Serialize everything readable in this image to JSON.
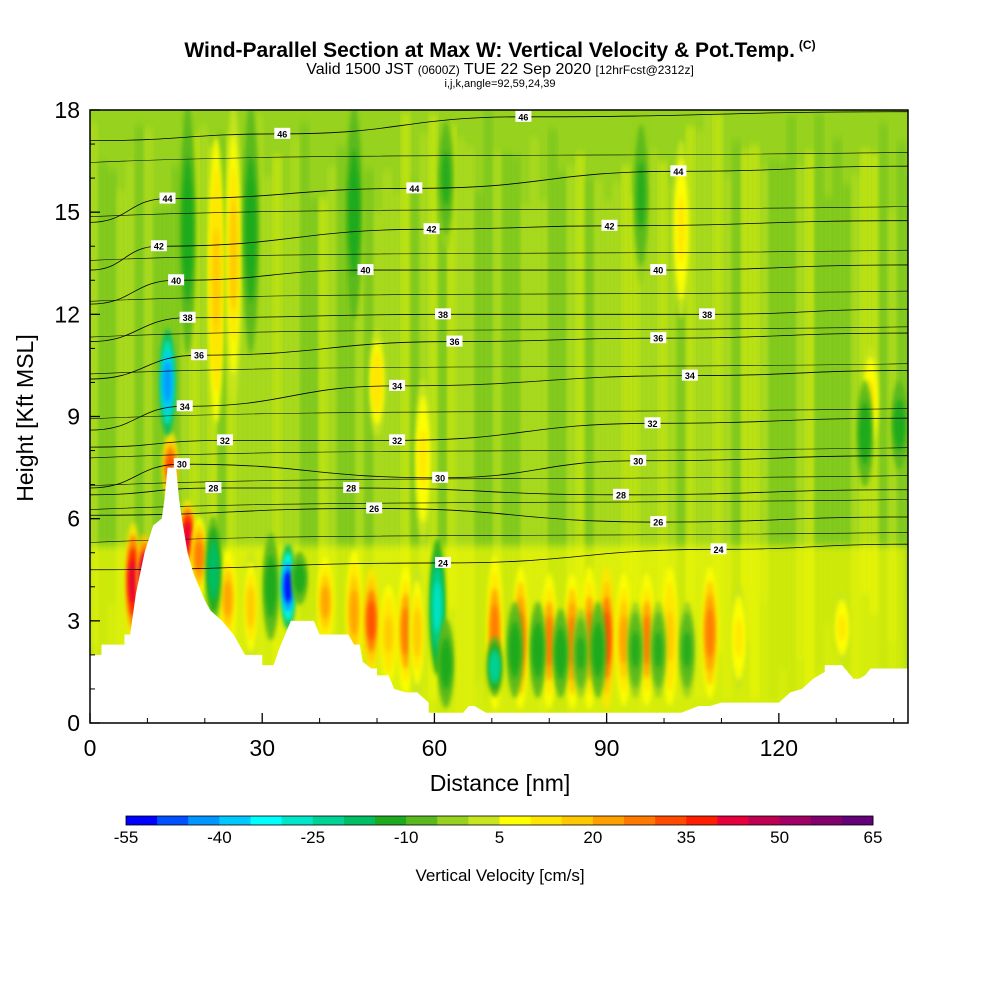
{
  "header": {
    "title": "Wind-Parallel Section at Max W: Vertical Velocity & Pot.Temp.",
    "copyright": "(C)",
    "subtitle_main_1": "Valid 1500 JST",
    "subtitle_utc": "(0600Z)",
    "subtitle_main_2": "TUE 22 Sep 2020",
    "subtitle_fcst": "[12hrFcst@2312z]",
    "indices": "i,j,k,angle=92,59,24,39"
  },
  "chart_data": {
    "type": "heatmap",
    "title": "Wind-Parallel Section at Max W: Vertical Velocity & Pot.Temp.",
    "xlabel": "Distance [nm]",
    "ylabel": "Height [Kft MSL]",
    "xlim": [
      0,
      142.5
    ],
    "ylim": [
      0,
      18
    ],
    "xticks": [
      0,
      30,
      60,
      90,
      120
    ],
    "yticks": [
      0,
      3,
      6,
      9,
      12,
      15,
      18
    ],
    "colorbar": {
      "label": "Vertical Velocity [cm/s]",
      "tick_values": [
        -55,
        -40,
        -25,
        -10,
        5,
        20,
        35,
        50,
        65
      ],
      "colors": [
        "#0000ff",
        "#0050ff",
        "#0096ff",
        "#00c8ff",
        "#00ffff",
        "#00e6c8",
        "#00d296",
        "#00be64",
        "#1eaa1e",
        "#5ab91e",
        "#96d21e",
        "#c8e61e",
        "#ffff00",
        "#ffe600",
        "#ffc800",
        "#ffa000",
        "#ff7800",
        "#ff4b00",
        "#ff1e00",
        "#e6003c",
        "#be0050",
        "#a00064",
        "#82006e",
        "#640078"
      ]
    },
    "terrain_profile": [
      [
        0,
        2
      ],
      [
        2,
        2
      ],
      [
        2,
        2.3
      ],
      [
        6,
        2.3
      ],
      [
        6,
        2.6
      ],
      [
        7,
        2.6
      ],
      [
        8,
        3.8
      ],
      [
        9.5,
        5
      ],
      [
        11,
        5.8
      ],
      [
        12.5,
        6
      ],
      [
        13,
        6.6
      ],
      [
        13.5,
        7.5
      ],
      [
        15,
        7.5
      ],
      [
        15.5,
        6.6
      ],
      [
        16,
        6
      ],
      [
        17,
        5
      ],
      [
        18,
        4.4
      ],
      [
        20,
        3.6
      ],
      [
        21,
        3.3
      ],
      [
        23,
        3
      ],
      [
        25,
        2.6
      ],
      [
        26,
        2.3
      ],
      [
        27,
        2
      ],
      [
        30,
        2
      ],
      [
        30,
        1.7
      ],
      [
        32,
        1.7
      ],
      [
        33,
        2.2
      ],
      [
        35,
        3
      ],
      [
        39,
        3
      ],
      [
        40,
        2.6
      ],
      [
        45,
        2.6
      ],
      [
        46,
        2.3
      ],
      [
        47,
        2.3
      ],
      [
        47.5,
        1.8
      ],
      [
        49,
        1.6
      ],
      [
        50,
        1.6
      ],
      [
        50,
        1.4
      ],
      [
        52,
        1.4
      ],
      [
        53,
        1
      ],
      [
        55,
        0.9
      ],
      [
        57,
        0.9
      ],
      [
        59,
        0.6
      ],
      [
        59,
        0.3
      ],
      [
        60,
        0.3
      ],
      [
        65,
        0.3
      ],
      [
        66,
        0.5
      ],
      [
        67,
        0.5
      ],
      [
        69,
        0.3
      ],
      [
        83,
        0.3
      ],
      [
        103,
        0.3
      ],
      [
        106,
        0.5
      ],
      [
        108,
        0.5
      ],
      [
        110,
        0.6
      ],
      [
        120,
        0.6
      ],
      [
        122,
        0.9
      ],
      [
        124,
        1
      ],
      [
        126,
        1.3
      ],
      [
        128,
        1.5
      ],
      [
        128,
        1.7
      ],
      [
        131,
        1.7
      ],
      [
        132,
        1.5
      ],
      [
        133,
        1.3
      ],
      [
        134,
        1.3
      ],
      [
        135,
        1.4
      ],
      [
        136,
        1.6
      ],
      [
        138,
        1.6
      ],
      [
        140,
        1.6
      ],
      [
        142.5,
        1.6
      ]
    ],
    "updraft_cores": [
      {
        "x": 7.5,
        "y0": 2.5,
        "y1": 5.8,
        "w": 52
      },
      {
        "x": 9.5,
        "y0": 3.2,
        "y1": 5.5,
        "w": 58
      },
      {
        "x": 14,
        "y0": 6.5,
        "y1": 8.5,
        "w": 40
      },
      {
        "x": 17,
        "y0": 4.5,
        "y1": 6.5,
        "w": 50
      },
      {
        "x": 19,
        "y0": 3.8,
        "y1": 6,
        "w": 32
      },
      {
        "x": 24,
        "y0": 2.3,
        "y1": 5,
        "w": 28
      },
      {
        "x": 28,
        "y0": 1.8,
        "y1": 5,
        "w": 20
      },
      {
        "x": 41,
        "y0": 2.3,
        "y1": 4.8,
        "w": 28
      },
      {
        "x": 46,
        "y0": 1.5,
        "y1": 5,
        "w": 25
      },
      {
        "x": 49,
        "y0": 1.5,
        "y1": 4.5,
        "w": 40
      },
      {
        "x": 52,
        "y0": 1.2,
        "y1": 4,
        "w": 22
      },
      {
        "x": 55,
        "y0": 0.9,
        "y1": 4.5,
        "w": 30
      },
      {
        "x": 57,
        "y0": 0.8,
        "y1": 4.5,
        "w": 20
      },
      {
        "x": 70.5,
        "y0": 0.5,
        "y1": 4.8,
        "w": 30
      },
      {
        "x": 75,
        "y0": 0.5,
        "y1": 4.5,
        "w": 35
      },
      {
        "x": 80,
        "y0": 0.5,
        "y1": 4.3,
        "w": 30
      },
      {
        "x": 84,
        "y0": 0.5,
        "y1": 4.3,
        "w": 32
      },
      {
        "x": 87,
        "y0": 0.5,
        "y1": 4.5,
        "w": 30
      },
      {
        "x": 90,
        "y0": 0.5,
        "y1": 4.5,
        "w": 40
      },
      {
        "x": 93,
        "y0": 0.6,
        "y1": 4.3,
        "w": 28
      },
      {
        "x": 97,
        "y0": 0.6,
        "y1": 4.3,
        "w": 30
      },
      {
        "x": 101,
        "y0": 0.6,
        "y1": 4.5,
        "w": 22
      },
      {
        "x": 108,
        "y0": 0.8,
        "y1": 4.5,
        "w": 32
      },
      {
        "x": 113,
        "y0": 1,
        "y1": 4,
        "w": 15
      },
      {
        "x": 131,
        "y0": 1.8,
        "y1": 3.8,
        "w": 15
      },
      {
        "x": 22,
        "y0": 9,
        "y1": 17,
        "w": 22
      },
      {
        "x": 25,
        "y0": 9.5,
        "y1": 18,
        "w": 20
      },
      {
        "x": 50,
        "y0": 8.5,
        "y1": 11.5,
        "w": 18
      },
      {
        "x": 58,
        "y0": 5.5,
        "y1": 10,
        "w": 15
      },
      {
        "x": 103,
        "y0": 12,
        "y1": 17,
        "w": 15
      },
      {
        "x": 136,
        "y0": 8,
        "y1": 11,
        "w": 15
      }
    ],
    "downdraft_cores": [
      {
        "x": 13.5,
        "y0": 8.5,
        "y1": 11.5,
        "w": -48
      },
      {
        "x": 21.5,
        "y0": 3,
        "y1": 6,
        "w": -20
      },
      {
        "x": 31.5,
        "y0": 2.5,
        "y1": 5.5,
        "w": -12
      },
      {
        "x": 34.5,
        "y0": 2.8,
        "y1": 5.2,
        "w": -55
      },
      {
        "x": 36.5,
        "y0": 3.5,
        "y1": 5,
        "w": -15
      },
      {
        "x": 60.5,
        "y0": 1.5,
        "y1": 5.3,
        "w": -30
      },
      {
        "x": 62,
        "y0": 0.5,
        "y1": 3,
        "w": -15
      },
      {
        "x": 70.5,
        "y0": 0.8,
        "y1": 2.5,
        "w": -25
      },
      {
        "x": 74,
        "y0": 0.8,
        "y1": 3.5,
        "w": -15
      },
      {
        "x": 78,
        "y0": 0.8,
        "y1": 3.5,
        "w": -12
      },
      {
        "x": 82,
        "y0": 0.8,
        "y1": 3.3,
        "w": -12
      },
      {
        "x": 85.5,
        "y0": 0.8,
        "y1": 3.3,
        "w": -10
      },
      {
        "x": 88.5,
        "y0": 0.8,
        "y1": 3.5,
        "w": -12
      },
      {
        "x": 95,
        "y0": 0.8,
        "y1": 3.5,
        "w": -10
      },
      {
        "x": 99,
        "y0": 0.8,
        "y1": 3.5,
        "w": -10
      },
      {
        "x": 104,
        "y0": 0.8,
        "y1": 3.5,
        "w": -10
      },
      {
        "x": 135,
        "y0": 7,
        "y1": 10,
        "w": -15
      },
      {
        "x": 141,
        "y0": 7.5,
        "y1": 10,
        "w": -15
      },
      {
        "x": 17,
        "y0": 11,
        "y1": 18,
        "w": -12
      },
      {
        "x": 28,
        "y0": 11,
        "y1": 18,
        "w": -12
      },
      {
        "x": 46,
        "y0": 12,
        "y1": 18,
        "w": -12
      },
      {
        "x": 62,
        "y0": 14,
        "y1": 18,
        "w": -10
      },
      {
        "x": 96,
        "y0": 13,
        "y1": 18,
        "w": -10
      }
    ],
    "theta_contour_labels": [
      {
        "value": "46",
        "x": 33.5,
        "y": 17.3
      },
      {
        "value": "46",
        "x": 75.5,
        "y": 17.8
      },
      {
        "value": "44",
        "x": 13.5,
        "y": 15.4
      },
      {
        "value": "44",
        "x": 56.5,
        "y": 15.7
      },
      {
        "value": "44",
        "x": 102.5,
        "y": 16.2
      },
      {
        "value": "42",
        "x": 12,
        "y": 14.0
      },
      {
        "value": "42",
        "x": 59.5,
        "y": 14.5
      },
      {
        "value": "42",
        "x": 90.5,
        "y": 14.6
      },
      {
        "value": "40",
        "x": 15,
        "y": 13.0
      },
      {
        "value": "40",
        "x": 48,
        "y": 13.3
      },
      {
        "value": "40",
        "x": 99,
        "y": 13.3
      },
      {
        "value": "38",
        "x": 17,
        "y": 11.9
      },
      {
        "value": "38",
        "x": 61.5,
        "y": 12.0
      },
      {
        "value": "38",
        "x": 107.5,
        "y": 12.0
      },
      {
        "value": "36",
        "x": 19,
        "y": 10.8
      },
      {
        "value": "36",
        "x": 63.5,
        "y": 11.2
      },
      {
        "value": "36",
        "x": 99,
        "y": 11.3
      },
      {
        "value": "34",
        "x": 16.5,
        "y": 9.3
      },
      {
        "value": "34",
        "x": 53.5,
        "y": 9.9
      },
      {
        "value": "34",
        "x": 104.5,
        "y": 10.2
      },
      {
        "value": "32",
        "x": 23.5,
        "y": 8.3
      },
      {
        "value": "32",
        "x": 53.5,
        "y": 8.3
      },
      {
        "value": "32",
        "x": 98,
        "y": 8.8
      },
      {
        "value": "30",
        "x": 16,
        "y": 7.6
      },
      {
        "value": "30",
        "x": 61,
        "y": 7.2
      },
      {
        "value": "30",
        "x": 95.5,
        "y": 7.7
      },
      {
        "value": "28",
        "x": 21.5,
        "y": 6.9
      },
      {
        "value": "28",
        "x": 45.5,
        "y": 6.9
      },
      {
        "value": "28",
        "x": 92.5,
        "y": 6.7
      },
      {
        "value": "26",
        "x": 49.5,
        "y": 6.3
      },
      {
        "value": "26",
        "x": 99,
        "y": 5.9
      },
      {
        "value": "24",
        "x": 61.5,
        "y": 4.7
      },
      {
        "value": "24",
        "x": 109.5,
        "y": 5.1
      }
    ]
  }
}
